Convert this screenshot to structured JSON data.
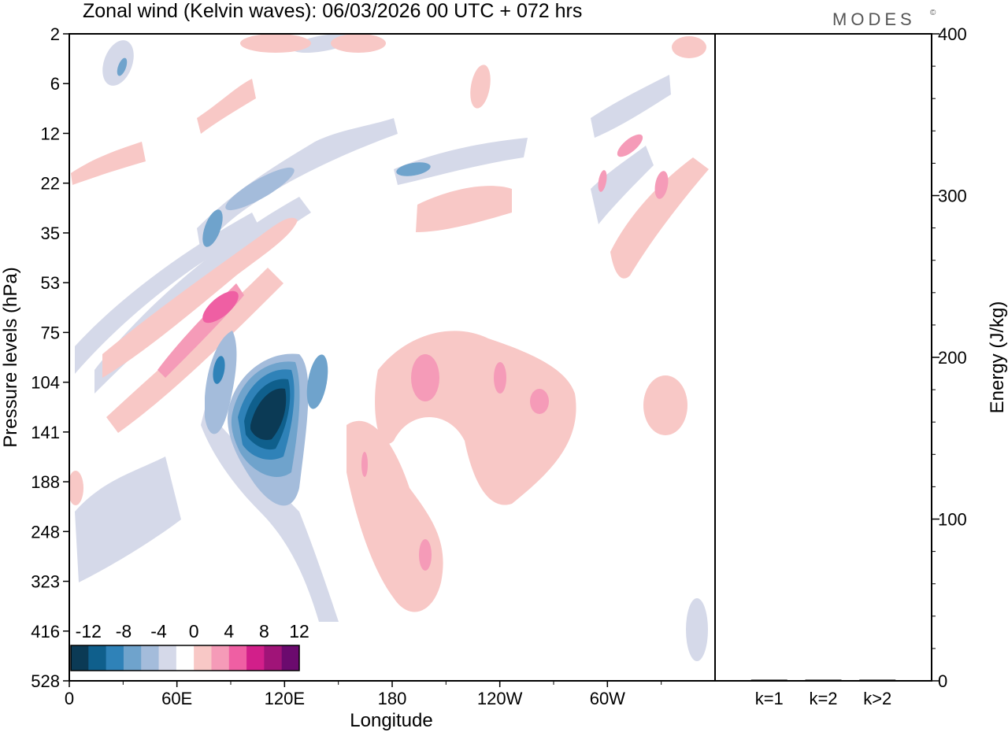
{
  "header": {
    "title": "Zonal wind (Kelvin waves):  06/03/2026  00 UTC  + 072 hrs",
    "brand": "MODES",
    "brand_mark": "©"
  },
  "chart_data": [
    {
      "type": "heatmap",
      "title": "Zonal wind (Kelvin waves):  06/03/2026  00 UTC  + 072 hrs",
      "xlabel": "Longitude",
      "ylabel": "Pressure levels (hPa)",
      "x_ticks": [
        "0",
        "60E",
        "120E",
        "180",
        "120W",
        "60W"
      ],
      "y_ticks": [
        "2",
        "6",
        "12",
        "22",
        "35",
        "53",
        "75",
        "104",
        "141",
        "188",
        "248",
        "323",
        "416",
        "528"
      ],
      "colorbar": {
        "labels": [
          "-12",
          "-8",
          "-4",
          "0",
          "4",
          "8",
          "12"
        ],
        "colors": [
          "#0b3a55",
          "#0f5f8c",
          "#2f82b8",
          "#6fa3cc",
          "#a4bcdb",
          "#d5d9e9",
          "#ffffff",
          "#f8c8c6",
          "#f59bb8",
          "#ef5fa3",
          "#d21f8a",
          "#a01478",
          "#6b0a6e"
        ]
      },
      "features": [
        {
          "longitude": 113,
          "pressure_hPa": 130,
          "u": -14
        },
        {
          "longitude": 80,
          "pressure_hPa": 104,
          "u": -10
        },
        {
          "longitude": 115,
          "pressure_hPa": 170,
          "u": -6
        },
        {
          "longitude": 85,
          "pressure_hPa": 62,
          "u": 8
        },
        {
          "longitude": 195,
          "pressure_hPa": 104,
          "u": 6
        },
        {
          "longitude": 205,
          "pressure_hPa": 160,
          "u": 2
        },
        {
          "longitude": 190,
          "pressure_hPa": 280,
          "u": 5
        },
        {
          "longitude": 105,
          "pressure_hPa": 24,
          "u": -6
        },
        {
          "longitude": 200,
          "pressure_hPa": 20,
          "u": -5
        },
        {
          "longitude": 315,
          "pressure_hPa": 22,
          "u": 6
        }
      ]
    },
    {
      "type": "bar",
      "ylabel": "Energy (J/kg)",
      "ylim": [
        0,
        400
      ],
      "y_ticks": [
        "0",
        "100",
        "200",
        "300",
        "400"
      ],
      "categories": [
        "k=1",
        "k=2",
        "k>2"
      ],
      "values": [
        0.4,
        0.2,
        0.4
      ]
    }
  ]
}
